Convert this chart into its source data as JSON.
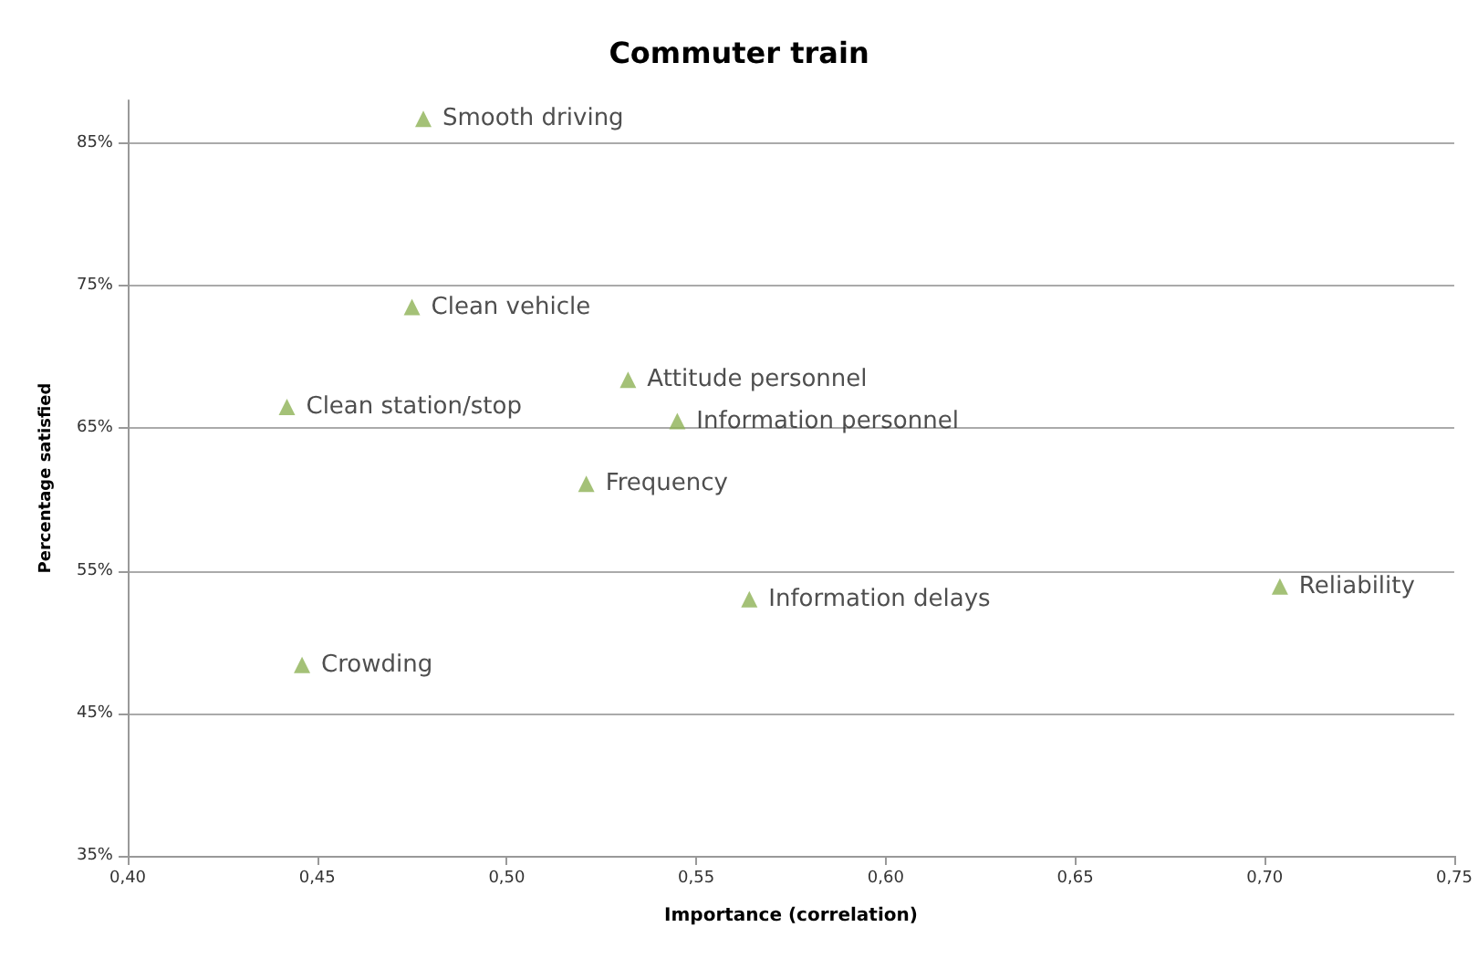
{
  "chart_data": {
    "type": "scatter",
    "title": "Commuter train",
    "xlabel": "Importance (correlation)",
    "ylabel": "Percentage satisfied",
    "xlim": [
      0.4,
      0.75
    ],
    "ylim": [
      35,
      88
    ],
    "xticks": [
      {
        "value": 0.4,
        "label": "0,40"
      },
      {
        "value": 0.45,
        "label": "0,45"
      },
      {
        "value": 0.5,
        "label": "0,50"
      },
      {
        "value": 0.55,
        "label": "0,55"
      },
      {
        "value": 0.6,
        "label": "0,60"
      },
      {
        "value": 0.65,
        "label": "0,65"
      },
      {
        "value": 0.7,
        "label": "0,70"
      },
      {
        "value": 0.75,
        "label": "0,75"
      }
    ],
    "yticks": [
      {
        "value": 35,
        "label": "35%"
      },
      {
        "value": 45,
        "label": "45%"
      },
      {
        "value": 55,
        "label": "55%"
      },
      {
        "value": 65,
        "label": "65%"
      },
      {
        "value": 75,
        "label": "75%"
      },
      {
        "value": 85,
        "label": "85%"
      }
    ],
    "grid": "y",
    "legend": false,
    "marker": "triangle",
    "series": [
      {
        "name": "Smooth driving",
        "color": "#8db255",
        "x": [
          0.478
        ],
        "values": [
          86.7
        ]
      },
      {
        "name": "Clean vehicle",
        "color": "#8db255",
        "x": [
          0.475
        ],
        "values": [
          73.5
        ]
      },
      {
        "name": "Attitude personnel",
        "color": "#8db255",
        "x": [
          0.532
        ],
        "values": [
          68.4
        ]
      },
      {
        "name": "Clean station/stop",
        "color": "#8db255",
        "x": [
          0.442
        ],
        "values": [
          66.5
        ]
      },
      {
        "name": "Information personnel",
        "color": "#8db255",
        "x": [
          0.545
        ],
        "values": [
          65.5
        ]
      },
      {
        "name": "Frequency",
        "color": "#8db255",
        "x": [
          0.521
        ],
        "values": [
          61.1
        ]
      },
      {
        "name": "Information delays",
        "color": "#8db255",
        "x": [
          0.564
        ],
        "values": [
          53.0
        ]
      },
      {
        "name": "Reliability",
        "color": "#8db255",
        "x": [
          0.704
        ],
        "values": [
          53.9
        ]
      },
      {
        "name": "Crowding",
        "color": "#8db255",
        "x": [
          0.446
        ],
        "values": [
          48.4
        ]
      }
    ]
  }
}
